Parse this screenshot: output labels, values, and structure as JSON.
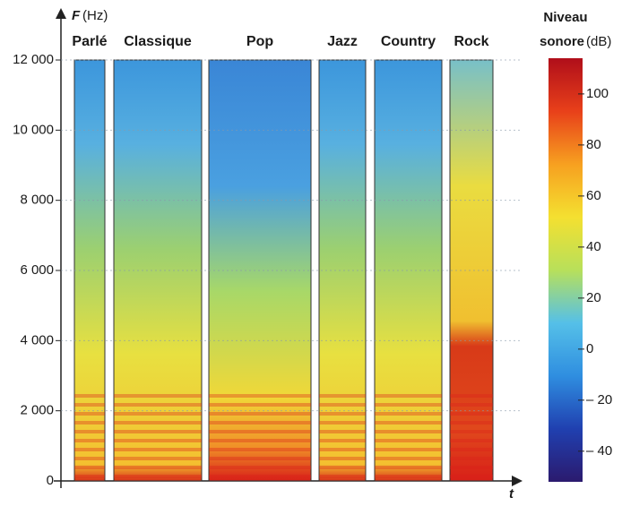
{
  "chart_data": {
    "type": "spectrogram",
    "y_label": "F",
    "y_unit": "(Hz)",
    "x_label": "t",
    "categories": [
      "Parlé",
      "Classique",
      "Pop",
      "Jazz",
      "Country",
      "Rock"
    ],
    "ylim": [
      0,
      12000
    ],
    "yticks": [
      0,
      {
        "value": 2000,
        "label": "2 000"
      },
      {
        "value": 4000,
        "label": "4 000"
      },
      {
        "value": 6000,
        "label": "6 000"
      },
      {
        "value": 8000,
        "label": "8 000"
      },
      {
        "value": 10000,
        "label": "10 000"
      },
      {
        "value": 12000,
        "label": "12 000"
      }
    ],
    "grid": true,
    "colorbar": {
      "title": [
        "Niveau",
        "sonore"
      ],
      "unit": "(dB)",
      "lim": [
        -52,
        114
      ],
      "ticks": [
        {
          "value": -40,
          "label": "– 40"
        },
        {
          "value": -20,
          "label": "– 20"
        },
        0,
        20,
        40,
        60,
        80,
        100
      ],
      "colors": [
        "#2b1a6e",
        "#2040b0",
        "#2f8ee0",
        "#55c0e8",
        "#b8e05a",
        "#f4e030",
        "#f7a020",
        "#e8401a",
        "#b00e1a"
      ]
    }
  }
}
